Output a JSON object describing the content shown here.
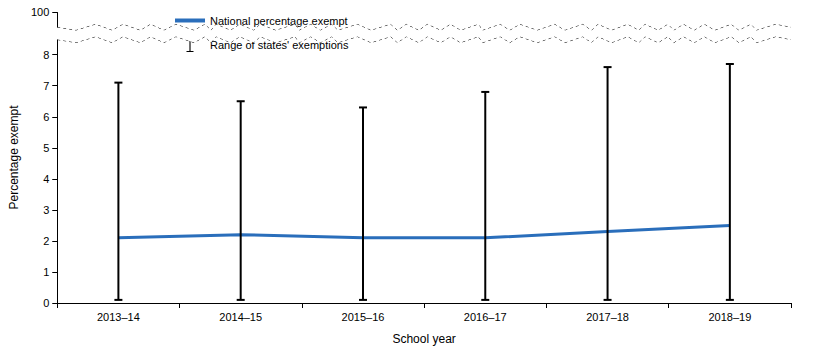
{
  "chart_data": {
    "type": "line",
    "x_label": "School year",
    "y_label": "Percentage exempt",
    "categories": [
      "2013–14",
      "2014–15",
      "2015–16",
      "2016–17",
      "2017–18",
      "2018–19"
    ],
    "series": [
      {
        "name": "National percentage exempt",
        "type": "line",
        "color": "#2a6ebb",
        "values": [
          2.1,
          2.2,
          2.1,
          2.1,
          2.3,
          2.5
        ]
      },
      {
        "name": "Range of states' exemptions",
        "type": "errorbar",
        "color": "#000000",
        "low": [
          0.1,
          0.1,
          0.1,
          0.1,
          0.1,
          0.1
        ],
        "high": [
          7.1,
          6.5,
          6.3,
          6.8,
          7.6,
          7.7
        ]
      }
    ],
    "ylim": [
      0,
      100
    ],
    "yticks": [
      0,
      1,
      2,
      3,
      4,
      5,
      6,
      7,
      8,
      100
    ],
    "grid": false,
    "legend": "top"
  }
}
